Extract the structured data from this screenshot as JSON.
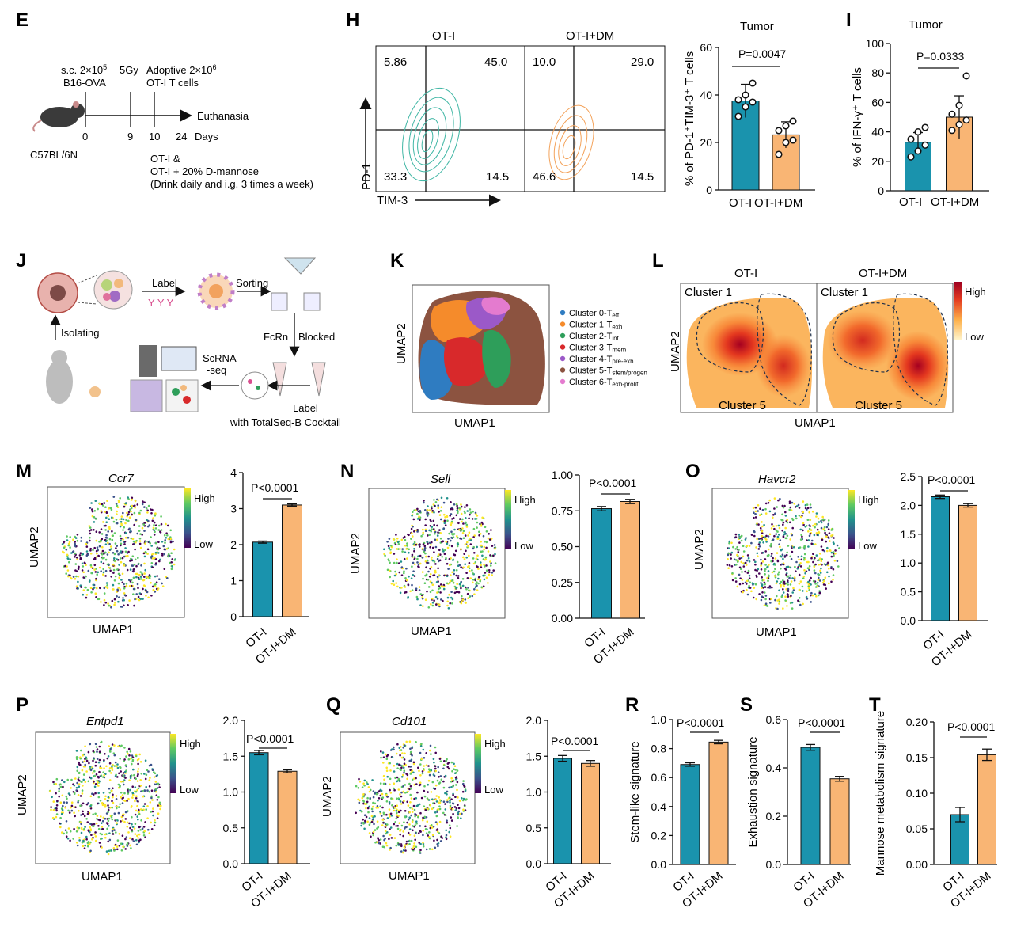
{
  "colors": {
    "ot1": "#1a93ad",
    "otdm": "#f9b574",
    "axis": "#111111"
  },
  "panels": {
    "E": {
      "label": "E",
      "line1a": "s.c. 2×10",
      "line1a_sup": "5",
      "line1b": "B16-OVA",
      "line2": "5Gy",
      "line3a": "Adoptive 2×10",
      "line3a_sup": "6",
      "line3b": "OT-I T cells",
      "endpoint": "Euthanasia",
      "days": [
        "0",
        "9",
        "10",
        "24"
      ],
      "days_label": "Days",
      "mouse": "C57BL/6N",
      "groups": [
        "OT-I  &",
        "OT-I + 20% D-mannose",
        "(Drink daily and i.g. 3 times a week)"
      ]
    },
    "H": {
      "label": "H",
      "ot_title": "OT-I",
      "dm_title": "OT-I+DM",
      "yaxis": "PD-1",
      "xaxis": "TIM-3",
      "ot_quadrants": [
        "5.86",
        "45.0",
        "33.3",
        "14.5"
      ],
      "dm_quadrants": [
        "10.0",
        "29.0",
        "46.6",
        "14.5"
      ],
      "bar_title": "Tumor",
      "pvalue": "P=0.0047"
    },
    "I": {
      "label": "I",
      "bar_title": "Tumor",
      "pvalue": "P=0.0333"
    },
    "J": {
      "label": "J",
      "step_label": "Label",
      "step_sorting": "Sorting",
      "step_isolating": "Isolating",
      "step_fcrn": "FcRn",
      "step_blocked": "Blocked",
      "step_scrna1": "ScRNA",
      "step_scrna2": "-seq",
      "step_label2": "Label",
      "step_cocktail": "with TotalSeq-B Cocktail"
    },
    "K": {
      "label": "K",
      "xaxis": "UMAP1",
      "yaxis": "UMAP2",
      "legend": [
        {
          "name": "Cluster 0-T",
          "sub": "eff",
          "color": "#2f7cc1"
        },
        {
          "name": "Cluster 1-T",
          "sub": "exh",
          "color": "#f58b2b"
        },
        {
          "name": "Cluster 2-T",
          "sub": "int",
          "color": "#2e9e5a"
        },
        {
          "name": "Cluster 3-T",
          "sub": "mem",
          "color": "#d8292b"
        },
        {
          "name": "Cluster 4-T",
          "sub": "pre-exh",
          "color": "#9b59c8"
        },
        {
          "name": "Cluster 5-T",
          "sub": "stem/progen",
          "color": "#8c5340"
        },
        {
          "name": "Cluster 6-T",
          "sub": "exh-prolif",
          "color": "#e47bcf"
        }
      ]
    },
    "L": {
      "label": "L",
      "ot_title": "OT-I",
      "dm_title": "OT-I+DM",
      "cluster1": "Cluster 1",
      "cluster5": "Cluster 5",
      "xaxis": "UMAP1",
      "yaxis": "UMAP2",
      "high": "High",
      "low": "Low"
    },
    "M": {
      "label": "M",
      "gene": "Ccr7",
      "pvalue": "P<0.0001",
      "high": "High",
      "low": "Low",
      "xaxis": "UMAP1",
      "yaxis": "UMAP2"
    },
    "N": {
      "label": "N",
      "gene": "Sell",
      "pvalue": "P<0.0001",
      "high": "High",
      "low": "Low",
      "xaxis": "UMAP1",
      "yaxis": "UMAP2"
    },
    "O": {
      "label": "O",
      "gene": "Havcr2",
      "pvalue": "P<0.0001",
      "high": "High",
      "low": "Low",
      "xaxis": "UMAP1",
      "yaxis": "UMAP2"
    },
    "P": {
      "label": "P",
      "gene": "Entpd1",
      "pvalue": "P<0.0001",
      "high": "High",
      "low": "Low",
      "xaxis": "UMAP1",
      "yaxis": "UMAP2"
    },
    "Q": {
      "label": "Q",
      "gene": "Cd101",
      "pvalue": "P<0.0001",
      "high": "High",
      "low": "Low",
      "xaxis": "UMAP1",
      "yaxis": "UMAP2"
    },
    "R": {
      "label": "R",
      "pvalue": "P<0.0001"
    },
    "S": {
      "label": "S",
      "pvalue": "P<0.0001"
    },
    "T": {
      "label": "T",
      "pvalue": "P<0.0001"
    }
  },
  "chart_data": [
    {
      "id": "H",
      "type": "bar",
      "categories": [
        "OT-I",
        "OT-I+DM"
      ],
      "values": [
        37.5,
        23.2
      ],
      "errors": [
        7,
        5.5
      ],
      "points": [
        [
          31,
          35,
          37,
          38,
          40,
          45
        ],
        [
          15,
          20,
          21,
          25,
          27,
          29
        ]
      ],
      "ylabel": "% of PD-1⁺TIM-3⁺ T cells",
      "ylim": [
        0,
        60
      ],
      "yticks": [
        0,
        20,
        40,
        60
      ],
      "ytick_labels": [
        "0",
        "20",
        "40",
        "60"
      ]
    },
    {
      "id": "I",
      "type": "bar",
      "categories": [
        "OT-I",
        "OT-I+DM"
      ],
      "values": [
        33,
        50
      ],
      "errors": [
        6.5,
        14.5
      ],
      "points": [
        [
          23,
          27,
          31,
          35,
          40,
          43
        ],
        [
          41,
          45,
          48,
          52,
          58,
          78
        ]
      ],
      "ylabel": "% of IFN-γ⁺ T cells",
      "ylim": [
        0,
        100
      ],
      "yticks": [
        0,
        20,
        40,
        60,
        80,
        100
      ],
      "ytick_labels": [
        "0",
        "20",
        "40",
        "60",
        "80",
        "100"
      ]
    },
    {
      "id": "M",
      "type": "bar",
      "categories": [
        "OT-I",
        "OT-I+DM"
      ],
      "values": [
        2.07,
        3.1
      ],
      "errors": [
        0.03,
        0.03
      ],
      "ylabel": "",
      "ylim": [
        0,
        4
      ],
      "yticks": [
        0,
        1,
        2,
        3,
        4
      ],
      "ytick_labels": [
        "0",
        "1",
        "2",
        "3",
        "4"
      ]
    },
    {
      "id": "N",
      "type": "bar",
      "categories": [
        "OT-I",
        "OT-I+DM"
      ],
      "values": [
        0.765,
        0.815
      ],
      "errors": [
        0.015,
        0.015
      ],
      "ylabel": "",
      "ylim": [
        0,
        1.0
      ],
      "yticks": [
        0,
        0.25,
        0.5,
        0.75,
        1.0
      ],
      "ytick_labels": [
        "0.00",
        "0.25",
        "0.50",
        "0.75",
        "1.00"
      ]
    },
    {
      "id": "O",
      "type": "bar",
      "categories": [
        "OT-I",
        "OT-I+DM"
      ],
      "values": [
        2.15,
        2.0
      ],
      "errors": [
        0.03,
        0.03
      ],
      "ylabel": "",
      "ylim": [
        0,
        2.5
      ],
      "yticks": [
        0,
        0.5,
        1.0,
        1.5,
        2.0,
        2.5
      ],
      "ytick_labels": [
        "0.0",
        "0.5",
        "1.0",
        "1.5",
        "2.0",
        "2.5"
      ]
    },
    {
      "id": "P",
      "type": "bar",
      "categories": [
        "OT-I",
        "OT-I+DM"
      ],
      "values": [
        1.55,
        1.29
      ],
      "errors": [
        0.03,
        0.02
      ],
      "ylabel": "",
      "ylim": [
        0,
        2.0
      ],
      "yticks": [
        0,
        0.5,
        1.0,
        1.5,
        2.0
      ],
      "ytick_labels": [
        "0.0",
        "0.5",
        "1.0",
        "1.5",
        "2.0"
      ]
    },
    {
      "id": "Q",
      "type": "bar",
      "categories": [
        "OT-I",
        "OT-I+DM"
      ],
      "values": [
        1.47,
        1.4
      ],
      "errors": [
        0.04,
        0.04
      ],
      "ylabel": "",
      "ylim": [
        0,
        2.0
      ],
      "yticks": [
        0,
        0.5,
        1.0,
        1.5,
        2.0
      ],
      "ytick_labels": [
        "0.0",
        "0.5",
        "1.0",
        "1.5",
        "2.0"
      ]
    },
    {
      "id": "R",
      "type": "bar",
      "categories": [
        "OT-I",
        "OT-I+DM"
      ],
      "values": [
        0.69,
        0.845
      ],
      "errors": [
        0.012,
        0.012
      ],
      "ylabel": "Stem-like signature",
      "ylim": [
        0,
        1.0
      ],
      "yticks": [
        0,
        0.2,
        0.4,
        0.6,
        0.8,
        1.0
      ],
      "ytick_labels": [
        "0.0",
        "0.2",
        "0.4",
        "0.6",
        "0.8",
        "1.0"
      ]
    },
    {
      "id": "S",
      "type": "bar",
      "categories": [
        "OT-I",
        "OT-I+DM"
      ],
      "values": [
        0.485,
        0.355
      ],
      "errors": [
        0.012,
        0.01
      ],
      "ylabel": "Exhaustion signature",
      "ylim": [
        0,
        0.6
      ],
      "yticks": [
        0,
        0.2,
        0.4,
        0.6
      ],
      "ytick_labels": [
        "0.0",
        "0.2",
        "0.4",
        "0.6"
      ]
    },
    {
      "id": "T",
      "type": "bar",
      "categories": [
        "OT-I",
        "OT-I+DM"
      ],
      "values": [
        0.07,
        0.154
      ],
      "errors": [
        0.01,
        0.008
      ],
      "ylabel": "Mannose metabolism signature",
      "ylim": [
        0,
        0.2
      ],
      "yticks": [
        0,
        0.05,
        0.1,
        0.15,
        0.2
      ],
      "ytick_labels": [
        "0.00",
        "0.05",
        "0.10",
        "0.15",
        "0.20"
      ]
    }
  ]
}
